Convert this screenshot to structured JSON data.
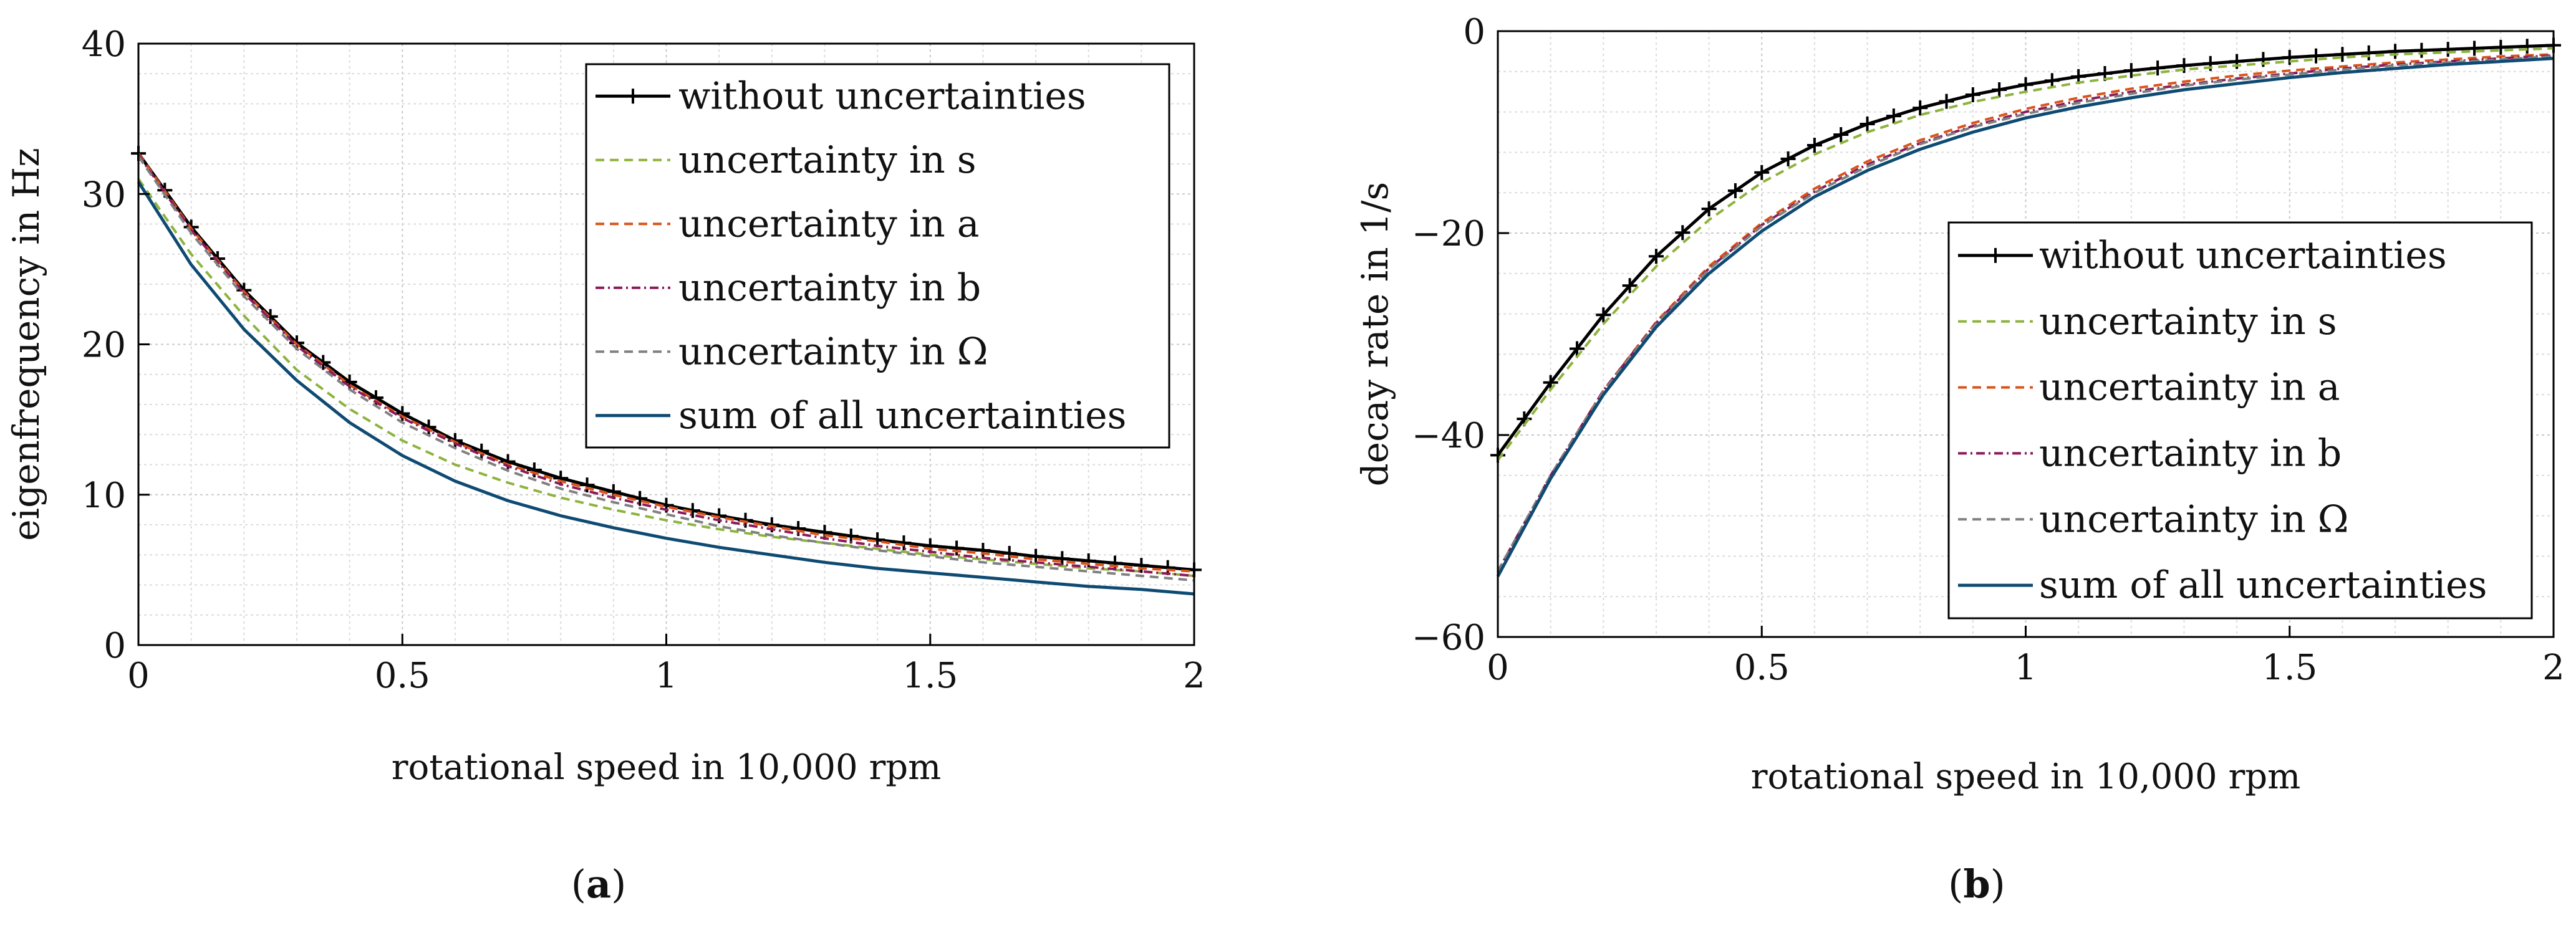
{
  "chart_data": [
    {
      "id": "a",
      "type": "line",
      "caption_letter": "a",
      "xlabel": "rotational speed in 10,000 rpm",
      "ylabel": "eigenfrequency in Hz",
      "xlim": [
        0,
        2
      ],
      "ylim": [
        0,
        40
      ],
      "xticks": [
        "0",
        "0.5",
        "1",
        "1.5",
        "2"
      ],
      "yticks": [
        "0",
        "10",
        "20",
        "30",
        "40"
      ],
      "grid": true,
      "legend_position": "top-right",
      "x": [
        0,
        0.1,
        0.2,
        0.3,
        0.4,
        0.5,
        0.6,
        0.7,
        0.8,
        0.9,
        1.0,
        1.1,
        1.2,
        1.3,
        1.4,
        1.5,
        1.6,
        1.7,
        1.8,
        1.9,
        2.0
      ],
      "series": [
        {
          "name": "without uncertainties",
          "color": "#000000",
          "style": "solid-plus",
          "values": [
            32.7,
            27.8,
            23.6,
            20.1,
            17.5,
            15.4,
            13.6,
            12.2,
            11.1,
            10.2,
            9.3,
            8.6,
            8.0,
            7.5,
            7.0,
            6.6,
            6.3,
            5.9,
            5.6,
            5.3,
            5.0
          ]
        },
        {
          "name": "uncertainty in s",
          "color": "#8db33d",
          "style": "dashed",
          "values": [
            31.0,
            26.0,
            21.9,
            18.3,
            15.7,
            13.6,
            12.0,
            10.8,
            9.8,
            9.0,
            8.3,
            7.7,
            7.2,
            6.8,
            6.4,
            6.0,
            5.7,
            5.4,
            5.1,
            4.9,
            4.6
          ]
        },
        {
          "name": "uncertainty in a",
          "color": "#d9541a",
          "style": "dashed",
          "values": [
            32.7,
            27.7,
            23.5,
            20.0,
            17.3,
            15.2,
            13.5,
            12.0,
            10.9,
            10.0,
            9.2,
            8.5,
            7.9,
            7.3,
            6.9,
            6.4,
            6.1,
            5.7,
            5.4,
            5.1,
            4.9
          ]
        },
        {
          "name": "uncertainty in b",
          "color": "#8c1a5a",
          "style": "dash-dot",
          "values": [
            32.6,
            27.6,
            23.4,
            19.9,
            17.2,
            15.1,
            13.4,
            11.9,
            10.7,
            9.8,
            9.0,
            8.3,
            7.7,
            7.1,
            6.6,
            6.2,
            5.8,
            5.5,
            5.2,
            4.9,
            4.6
          ]
        },
        {
          "name": "uncertainty in Ω",
          "color": "#808080",
          "style": "dashed",
          "values": [
            32.5,
            27.4,
            23.2,
            19.7,
            17.0,
            14.8,
            13.1,
            11.6,
            10.4,
            9.5,
            8.7,
            7.9,
            7.3,
            6.8,
            6.3,
            5.9,
            5.5,
            5.2,
            4.9,
            4.6,
            4.3
          ]
        },
        {
          "name": "sum of all uncertainties",
          "color": "#0e4a72",
          "style": "solid",
          "values": [
            30.8,
            25.3,
            21.0,
            17.6,
            14.8,
            12.6,
            10.9,
            9.6,
            8.6,
            7.8,
            7.1,
            6.5,
            6.0,
            5.5,
            5.1,
            4.8,
            4.5,
            4.2,
            3.9,
            3.7,
            3.4
          ]
        }
      ]
    },
    {
      "id": "b",
      "type": "line",
      "caption_letter": "b",
      "xlabel": "rotational speed in 10,000 rpm",
      "ylabel": "decay rate in 1/s",
      "xlim": [
        0,
        2
      ],
      "ylim": [
        -60,
        0
      ],
      "xticks": [
        "0",
        "0.5",
        "1",
        "1.5",
        "2"
      ],
      "yticks": [
        "−60",
        "−40",
        "−20",
        "0"
      ],
      "grid": true,
      "legend_position": "bottom-right",
      "x": [
        0,
        0.1,
        0.2,
        0.3,
        0.4,
        0.5,
        0.6,
        0.7,
        0.8,
        0.9,
        1.0,
        1.1,
        1.2,
        1.3,
        1.4,
        1.5,
        1.6,
        1.7,
        1.8,
        1.9,
        2.0
      ],
      "series": [
        {
          "name": "without uncertainties",
          "color": "#000000",
          "style": "solid-plus",
          "values": [
            -42.0,
            -34.8,
            -28.1,
            -22.3,
            -17.6,
            -14.0,
            -11.3,
            -9.2,
            -7.6,
            -6.3,
            -5.3,
            -4.5,
            -3.9,
            -3.4,
            -3.0,
            -2.6,
            -2.3,
            -2.0,
            -1.8,
            -1.6,
            -1.4
          ]
        },
        {
          "name": "uncertainty in s",
          "color": "#8db33d",
          "style": "dashed",
          "values": [
            -42.5,
            -35.5,
            -29.0,
            -23.3,
            -18.7,
            -15.0,
            -12.2,
            -10.0,
            -8.3,
            -7.0,
            -6.0,
            -5.1,
            -4.4,
            -3.8,
            -3.4,
            -3.0,
            -2.6,
            -2.3,
            -2.1,
            -1.9,
            -1.7
          ]
        },
        {
          "name": "uncertainty in a",
          "color": "#d9541a",
          "style": "dashed",
          "values": [
            -53.5,
            -44.0,
            -35.6,
            -28.8,
            -23.3,
            -19.0,
            -15.6,
            -12.9,
            -10.8,
            -9.1,
            -7.7,
            -6.6,
            -5.7,
            -5.0,
            -4.4,
            -3.9,
            -3.5,
            -3.1,
            -2.8,
            -2.5,
            -2.3
          ]
        },
        {
          "name": "uncertainty in b",
          "color": "#8c1a5a",
          "style": "dash-dot",
          "values": [
            -53.5,
            -44.0,
            -35.6,
            -28.9,
            -23.5,
            -19.2,
            -15.9,
            -13.2,
            -11.1,
            -9.4,
            -8.0,
            -6.9,
            -6.0,
            -5.3,
            -4.7,
            -4.2,
            -3.7,
            -3.3,
            -3.0,
            -2.7,
            -2.4
          ]
        },
        {
          "name": "uncertainty in Ω",
          "color": "#808080",
          "style": "dashed",
          "values": [
            -53.5,
            -44.0,
            -35.7,
            -29.0,
            -23.6,
            -19.3,
            -16.0,
            -13.4,
            -11.2,
            -9.5,
            -8.2,
            -7.1,
            -6.2,
            -5.4,
            -4.8,
            -4.3,
            -3.8,
            -3.4,
            -3.1,
            -2.8,
            -2.5
          ]
        },
        {
          "name": "sum of all uncertainties",
          "color": "#0e4a72",
          "style": "solid",
          "values": [
            -54.0,
            -44.3,
            -36.0,
            -29.3,
            -24.0,
            -19.8,
            -16.4,
            -13.8,
            -11.7,
            -10.0,
            -8.6,
            -7.5,
            -6.6,
            -5.8,
            -5.2,
            -4.6,
            -4.1,
            -3.7,
            -3.3,
            -3.0,
            -2.7
          ]
        }
      ]
    }
  ]
}
